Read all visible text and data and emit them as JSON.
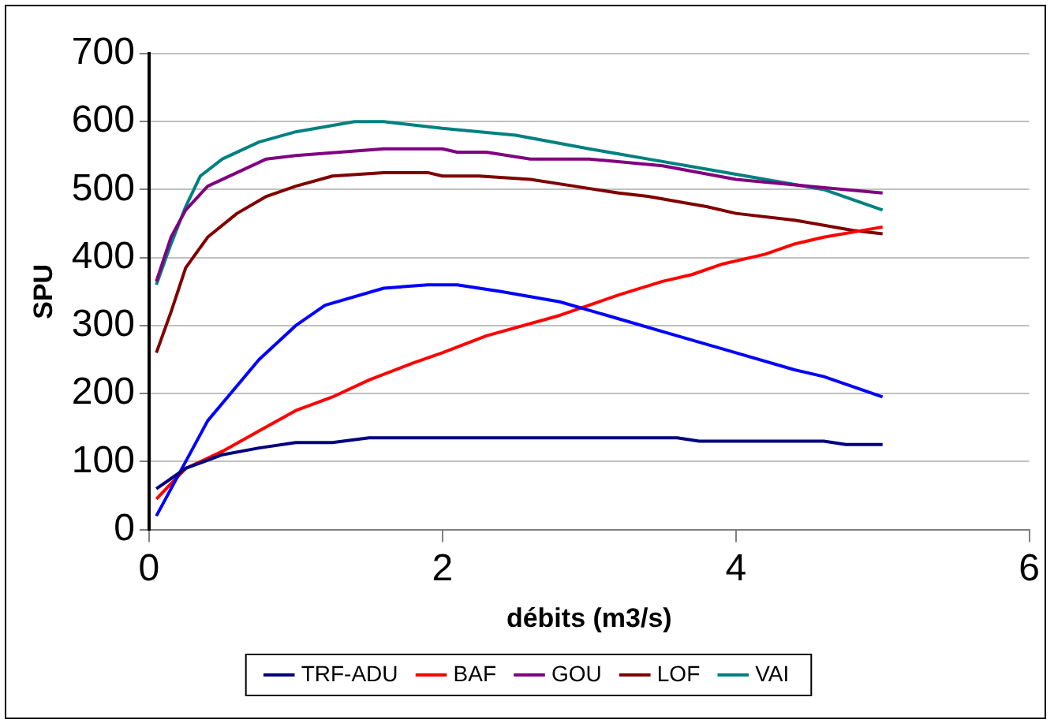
{
  "chart_data": {
    "type": "line",
    "xlabel": "débits (m3/s)",
    "ylabel": "SPU",
    "xlim": [
      0,
      6
    ],
    "xticks": [
      0,
      2,
      4,
      6
    ],
    "ylim": [
      0,
      700
    ],
    "yticks": [
      0,
      100,
      200,
      300,
      400,
      500,
      600,
      700
    ],
    "grid": "y",
    "legend": "bottom",
    "marker": "none",
    "line_style": "solid",
    "series": [
      {
        "name": "TRF-ADU",
        "color": "#000080",
        "x": [
          0.05,
          0.25,
          0.5,
          0.75,
          1,
          1.25,
          1.5,
          2,
          2.5,
          3,
          3.6,
          3.75,
          4.2,
          4.6,
          4.75,
          5
        ],
        "values": [
          60,
          90,
          110,
          120,
          128,
          128,
          135,
          135,
          135,
          135,
          135,
          130,
          130,
          130,
          125,
          125
        ]
      },
      {
        "color": "#0000ff",
        "x": [
          0.05,
          0.25,
          0.4,
          0.75,
          1,
          1.2,
          1.6,
          1.9,
          2.1,
          2.4,
          2.8,
          3.2,
          3.6,
          4,
          4.4,
          4.6,
          5
        ],
        "values": [
          20,
          100,
          160,
          250,
          300,
          330,
          355,
          360,
          360,
          350,
          335,
          310,
          285,
          260,
          235,
          225,
          195
        ]
      },
      {
        "name": "BAF",
        "color": "#ff0000",
        "x": [
          0.05,
          0.25,
          0.5,
          0.75,
          1,
          1.25,
          1.5,
          1.8,
          2,
          2.3,
          2.8,
          3.2,
          3.5,
          3.7,
          3.9,
          4.2,
          4.4,
          4.6,
          5
        ],
        "values": [
          45,
          90,
          115,
          145,
          175,
          195,
          220,
          245,
          260,
          285,
          315,
          345,
          365,
          375,
          390,
          405,
          420,
          430,
          445
        ]
      },
      {
        "name": "GOU",
        "color": "#800080",
        "x": [
          0.05,
          0.15,
          0.25,
          0.4,
          0.6,
          0.8,
          1,
          1.3,
          1.6,
          2,
          2.1,
          2.3,
          2.6,
          3,
          3.5,
          4,
          4.5,
          5
        ],
        "values": [
          365,
          430,
          470,
          505,
          525,
          545,
          550,
          555,
          560,
          560,
          555,
          555,
          545,
          545,
          535,
          515,
          505,
          495
        ]
      },
      {
        "name": "LOF",
        "color": "#800000",
        "x": [
          0.05,
          0.15,
          0.25,
          0.4,
          0.6,
          0.8,
          1,
          1.25,
          1.6,
          1.9,
          2,
          2.25,
          2.6,
          2.9,
          3.2,
          3.4,
          3.8,
          4,
          4.4,
          4.8,
          5
        ],
        "values": [
          260,
          320,
          385,
          430,
          465,
          490,
          505,
          520,
          525,
          525,
          520,
          520,
          515,
          505,
          495,
          490,
          475,
          465,
          455,
          440,
          435
        ]
      },
      {
        "name": "VAI",
        "color": "#008080",
        "x": [
          0.05,
          0.15,
          0.25,
          0.35,
          0.5,
          0.75,
          1,
          1.4,
          1.6,
          2,
          2.5,
          3,
          3.4,
          3.8,
          4.2,
          4.6,
          5
        ],
        "values": [
          360,
          420,
          475,
          520,
          545,
          570,
          585,
          600,
          600,
          590,
          580,
          560,
          545,
          530,
          515,
          500,
          470
        ]
      }
    ]
  }
}
